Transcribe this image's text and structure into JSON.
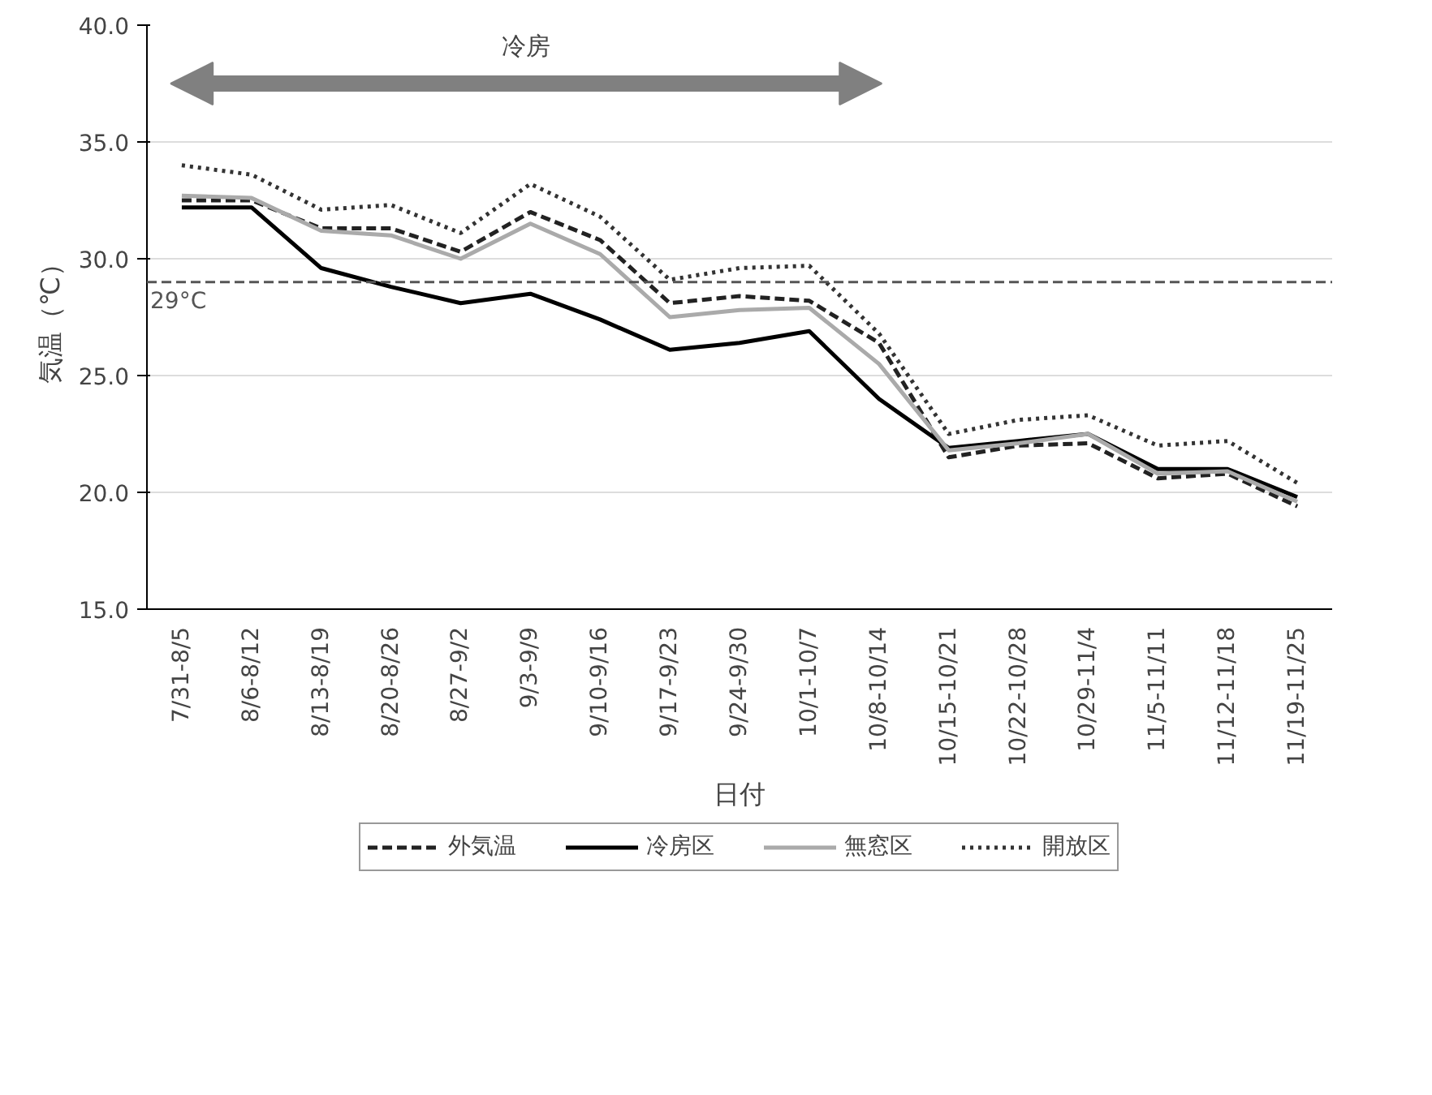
{
  "chart_data": {
    "type": "line",
    "xlabel": "日付",
    "ylabel": "気温（℃）",
    "categories": [
      "7/31-8/5",
      "8/6-8/12",
      "8/13-8/19",
      "8/20-8/26",
      "8/27-9/2",
      "9/3-9/9",
      "9/10-9/16",
      "9/17-9/23",
      "9/24-9/30",
      "10/1-10/7",
      "10/8-10/14",
      "10/15-10/21",
      "10/22-10/28",
      "10/29-11/4",
      "11/5-11/11",
      "11/12-11/18",
      "11/19-11/25"
    ],
    "series": [
      {
        "name": "外気温",
        "color": "#222222",
        "line_style": "dashed",
        "values": [
          32.5,
          32.5,
          31.3,
          31.3,
          30.3,
          32.0,
          30.8,
          28.1,
          28.4,
          28.2,
          26.4,
          21.5,
          22.0,
          22.1,
          20.6,
          20.8,
          19.4
        ]
      },
      {
        "name": "冷房区",
        "color": "#000000",
        "line_style": "solid",
        "values": [
          32.2,
          32.2,
          29.6,
          28.8,
          28.1,
          28.5,
          27.4,
          26.1,
          26.4,
          26.9,
          24.0,
          21.9,
          22.2,
          22.5,
          21.0,
          21.0,
          19.8
        ]
      },
      {
        "name": "無窓区",
        "color": "#aaaaaa",
        "line_style": "solid",
        "values": [
          32.7,
          32.6,
          31.2,
          31.0,
          30.0,
          31.5,
          30.2,
          27.5,
          27.8,
          27.9,
          25.5,
          21.8,
          22.1,
          22.5,
          20.8,
          20.9,
          19.6
        ]
      },
      {
        "name": "開放区",
        "color": "#333333",
        "line_style": "dotted",
        "values": [
          34.0,
          33.6,
          32.1,
          32.3,
          31.1,
          33.2,
          31.8,
          29.1,
          29.6,
          29.7,
          26.8,
          22.5,
          23.1,
          23.3,
          22.0,
          22.2,
          20.4
        ]
      }
    ],
    "ylim": [
      15,
      40
    ],
    "yticks": [
      {
        "value": 15,
        "label": "15.0"
      },
      {
        "value": 20,
        "label": "20.0"
      },
      {
        "value": 25,
        "label": "25.0"
      },
      {
        "value": 30,
        "label": "30.0"
      },
      {
        "value": 35,
        "label": "35.0"
      },
      {
        "value": 40,
        "label": "40.0"
      }
    ],
    "grid": "y",
    "legend": "bottom",
    "marker": "none",
    "ref_lines": [
      {
        "axis": "y",
        "value": 29,
        "label": "29°C",
        "color": "#555555",
        "line_style": "dashed"
      }
    ],
    "annotations": [
      "冷房"
    ]
  }
}
